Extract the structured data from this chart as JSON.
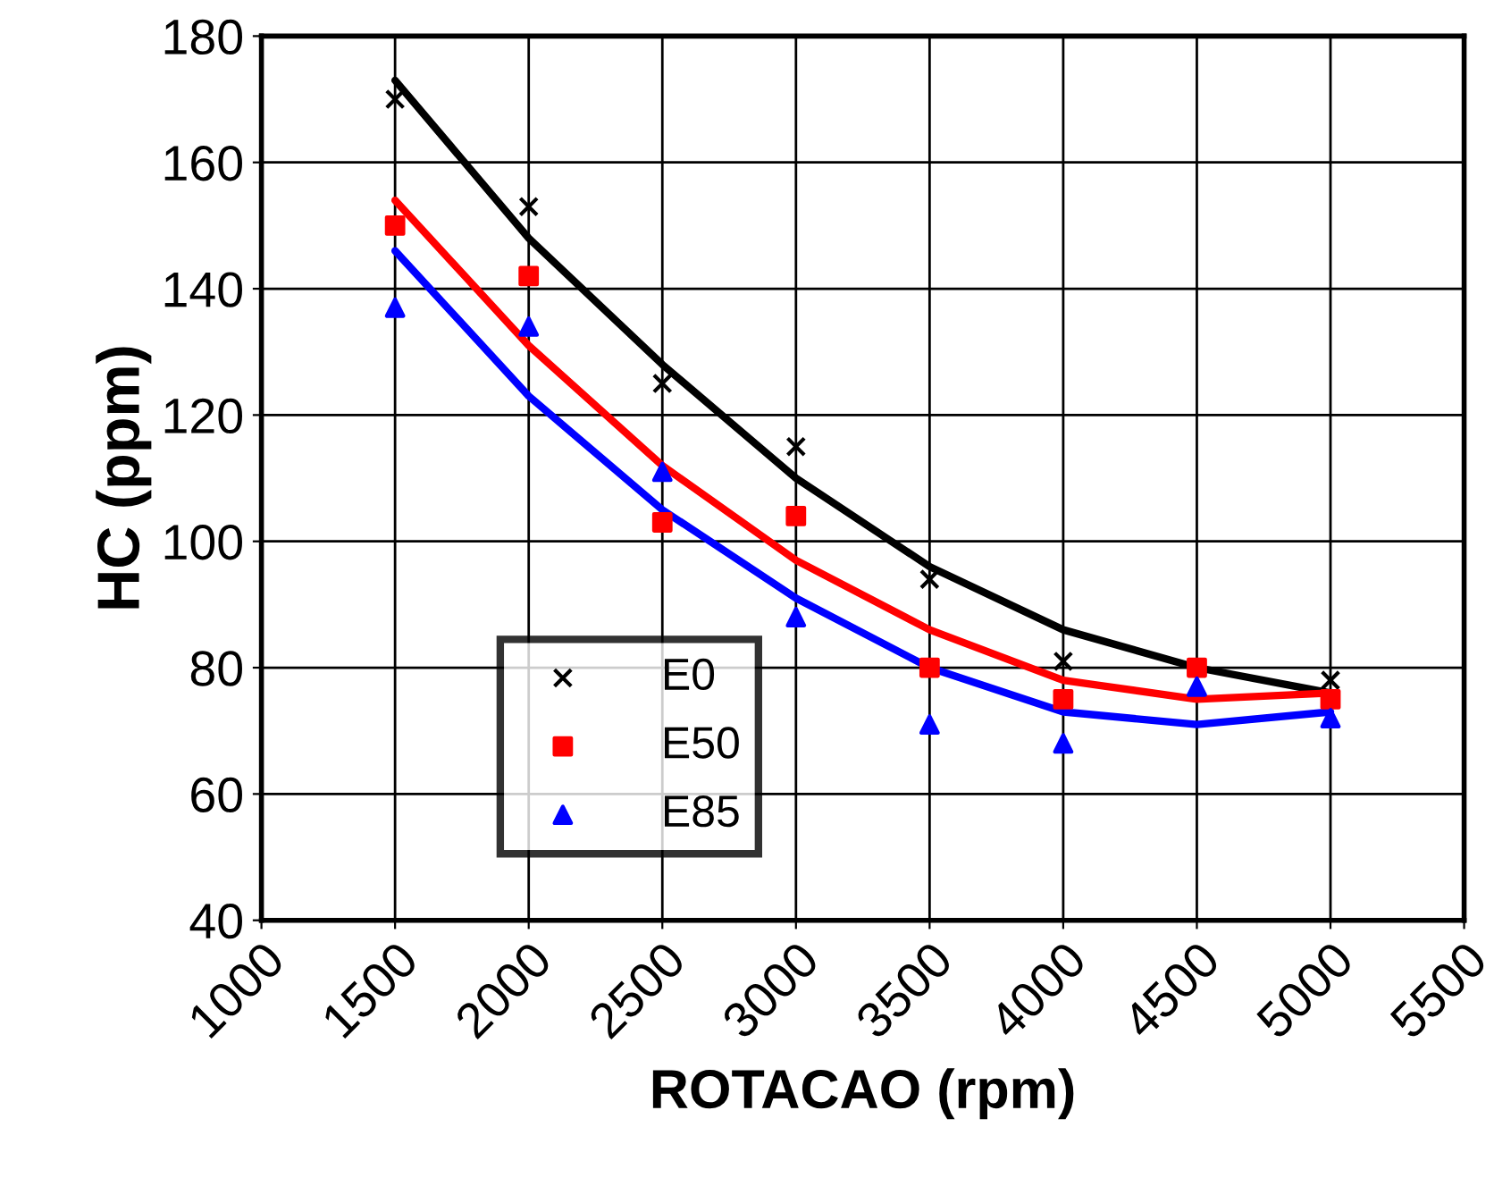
{
  "chart_data": {
    "type": "scatter",
    "xlabel": "ROTACAO (rpm)",
    "ylabel": "HC (ppm)",
    "xlim": [
      1000,
      5500
    ],
    "xticks": [
      1000,
      1500,
      2000,
      2500,
      3000,
      3500,
      4000,
      4500,
      5000,
      5500
    ],
    "ylim": [
      40,
      180
    ],
    "yticks": [
      40,
      60,
      80,
      100,
      120,
      140,
      160,
      180
    ],
    "grid": true,
    "legend": "bottom left",
    "x": [
      1500,
      2000,
      2500,
      3000,
      3500,
      4000,
      4500,
      5000
    ],
    "series": [
      {
        "name": "E0",
        "color": "#000000",
        "marker": "cross",
        "values": [
          170,
          153,
          125,
          115,
          94,
          81,
          null,
          78
        ]
      },
      {
        "name": "E50",
        "color": "#ff0000",
        "marker": "square",
        "values": [
          150,
          142,
          103,
          104,
          80,
          75,
          80,
          75
        ]
      },
      {
        "name": "E85",
        "color": "#0000ff",
        "marker": "triangle",
        "values": [
          137,
          134,
          111,
          88,
          71,
          68,
          77,
          72
        ]
      },
      {
        "type": "line",
        "color": "#000000",
        "values": [
          173,
          148,
          128,
          110,
          96,
          86,
          80,
          76
        ]
      },
      {
        "type": "line",
        "color": "#ff0000",
        "values": [
          154,
          131,
          112,
          97,
          86,
          78,
          75,
          76
        ]
      },
      {
        "type": "line",
        "color": "#0000ff",
        "values": [
          146,
          123,
          105,
          91,
          80,
          73,
          71,
          73
        ]
      }
    ]
  }
}
